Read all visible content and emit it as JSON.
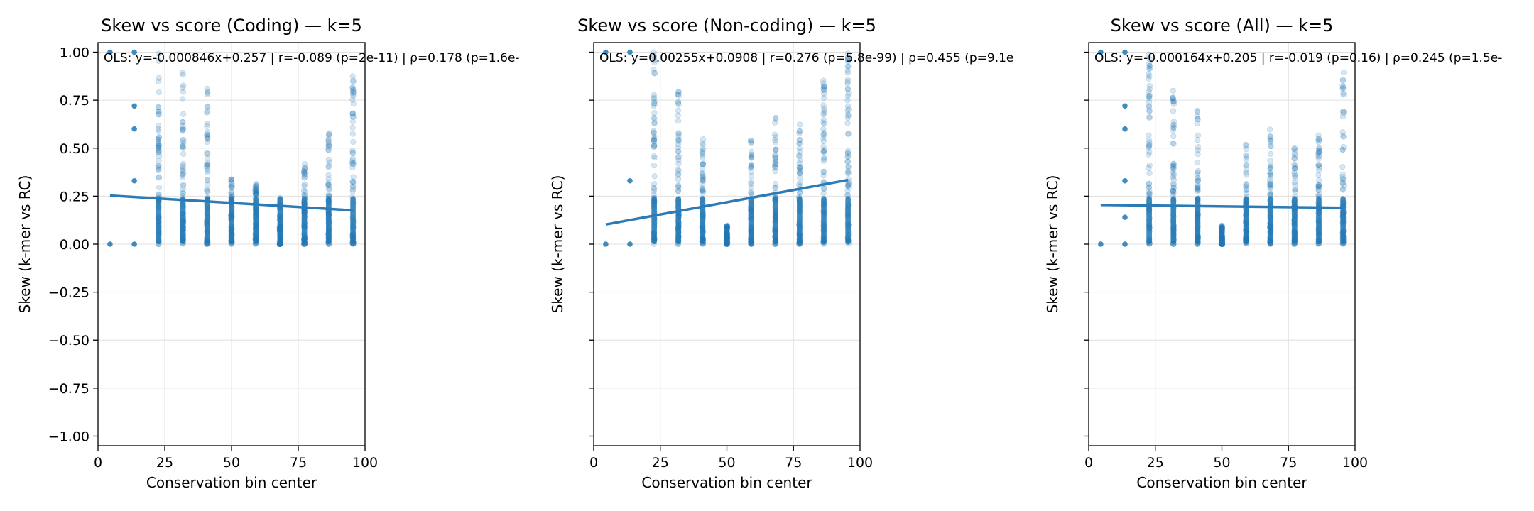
{
  "chart_data": [
    {
      "type": "scatter",
      "title": "Skew vs score (Coding) — k=5",
      "xlabel": "Conservation bin center",
      "ylabel": "Skew (k-mer vs RC)",
      "xlim": [
        0,
        100
      ],
      "ylim": [
        -1.05,
        1.05
      ],
      "xticks": [
        "0",
        "25",
        "50",
        "75",
        "100"
      ],
      "yticks": [
        "1.00",
        "0.75",
        "0.50",
        "0.25",
        "0.00",
        "−0.25",
        "−0.50",
        "−0.75",
        "−1.00"
      ],
      "grid": true,
      "annotation": "OLS: y=-0.000846x+0.257 | r=-0.089 (p=2e-11) | ρ=0.178 (p=1.6e-",
      "fit_line": {
        "slope": -0.000846,
        "intercept": 0.257,
        "x_range": [
          4.5,
          95.5
        ]
      },
      "point_columns": [
        {
          "x": 4.5,
          "ymin": 0.0,
          "ymax": 1.0,
          "sparse": [
            0.0,
            1.0
          ]
        },
        {
          "x": 13.6,
          "ymin": 0.0,
          "ymax": 1.0,
          "sparse": [
            0.0,
            0.33,
            0.6,
            0.72,
            1.0
          ]
        },
        {
          "x": 22.7,
          "ymin": 0.0,
          "ymax": 1.0
        },
        {
          "x": 31.8,
          "ymin": 0.0,
          "ymax": 0.93
        },
        {
          "x": 40.9,
          "ymin": 0.0,
          "ymax": 0.82
        },
        {
          "x": 50.0,
          "ymin": 0.0,
          "ymax": 0.36
        },
        {
          "x": 59.1,
          "ymin": 0.0,
          "ymax": 0.32
        },
        {
          "x": 68.2,
          "ymin": 0.0,
          "ymax": 0.25
        },
        {
          "x": 77.3,
          "ymin": 0.0,
          "ymax": 0.42
        },
        {
          "x": 86.4,
          "ymin": 0.0,
          "ymax": 0.61
        },
        {
          "x": 95.5,
          "ymin": 0.0,
          "ymax": 0.93
        }
      ]
    },
    {
      "type": "scatter",
      "title": "Skew vs score (Non-coding) — k=5",
      "xlabel": "Conservation bin center",
      "ylabel": "Skew (k-mer vs RC)",
      "xlim": [
        0,
        100
      ],
      "ylim": [
        -1.05,
        1.05
      ],
      "xticks": [
        "0",
        "25",
        "50",
        "75",
        "100"
      ],
      "yticks": [],
      "grid": true,
      "annotation": "OLS: y=0.00255x+0.0908 | r=0.276 (p=5.8e-99) | ρ=0.455 (p=9.1e",
      "fit_line": {
        "slope": 0.00255,
        "intercept": 0.0908,
        "x_range": [
          4.5,
          95.5
        ]
      },
      "point_columns": [
        {
          "x": 4.5,
          "ymin": 0.0,
          "ymax": 1.0,
          "sparse": [
            0.0,
            1.0
          ]
        },
        {
          "x": 13.6,
          "ymin": 0.0,
          "ymax": 1.0,
          "sparse": [
            0.0,
            0.33,
            1.0
          ]
        },
        {
          "x": 22.7,
          "ymin": 0.0,
          "ymax": 1.0
        },
        {
          "x": 31.8,
          "ymin": 0.0,
          "ymax": 0.8
        },
        {
          "x": 40.9,
          "ymin": 0.0,
          "ymax": 0.58
        },
        {
          "x": 50.0,
          "ymin": 0.0,
          "ymax": 0.1
        },
        {
          "x": 59.1,
          "ymin": 0.0,
          "ymax": 0.55
        },
        {
          "x": 68.2,
          "ymin": 0.0,
          "ymax": 0.68
        },
        {
          "x": 77.3,
          "ymin": 0.0,
          "ymax": 0.64
        },
        {
          "x": 86.4,
          "ymin": 0.0,
          "ymax": 0.87
        },
        {
          "x": 95.5,
          "ymin": 0.0,
          "ymax": 1.0
        }
      ]
    },
    {
      "type": "scatter",
      "title": "Skew vs score (All) — k=5",
      "xlabel": "Conservation bin center",
      "ylabel": "Skew (k-mer vs RC)",
      "xlim": [
        0,
        100
      ],
      "ylim": [
        -1.05,
        1.05
      ],
      "xticks": [
        "0",
        "25",
        "50",
        "75",
        "100"
      ],
      "yticks": [],
      "grid": true,
      "annotation": "OLS: y=-0.000164x+0.205 | r=-0.019 (p=0.16) | ρ=0.245 (p=1.5e-",
      "fit_line": {
        "slope": -0.000164,
        "intercept": 0.205,
        "x_range": [
          4.5,
          95.5
        ]
      },
      "point_columns": [
        {
          "x": 4.5,
          "ymin": 0.0,
          "ymax": 1.0,
          "sparse": [
            0.0,
            1.0
          ]
        },
        {
          "x": 13.6,
          "ymin": 0.0,
          "ymax": 1.0,
          "sparse": [
            0.0,
            0.14,
            0.33,
            0.6,
            0.72,
            1.0
          ]
        },
        {
          "x": 22.7,
          "ymin": 0.0,
          "ymax": 1.0
        },
        {
          "x": 31.8,
          "ymin": 0.0,
          "ymax": 0.8
        },
        {
          "x": 40.9,
          "ymin": 0.0,
          "ymax": 0.72
        },
        {
          "x": 50.0,
          "ymin": 0.0,
          "ymax": 0.1
        },
        {
          "x": 59.1,
          "ymin": 0.0,
          "ymax": 0.54
        },
        {
          "x": 68.2,
          "ymin": 0.0,
          "ymax": 0.6
        },
        {
          "x": 77.3,
          "ymin": 0.0,
          "ymax": 0.5
        },
        {
          "x": 86.4,
          "ymin": 0.0,
          "ymax": 0.57
        },
        {
          "x": 95.5,
          "ymin": 0.0,
          "ymax": 0.93
        }
      ]
    }
  ],
  "colors": {
    "points": "#1f77b4",
    "fit_line": "#2c7bb6",
    "grid": "#e0e0e0",
    "axis": "#000000"
  }
}
